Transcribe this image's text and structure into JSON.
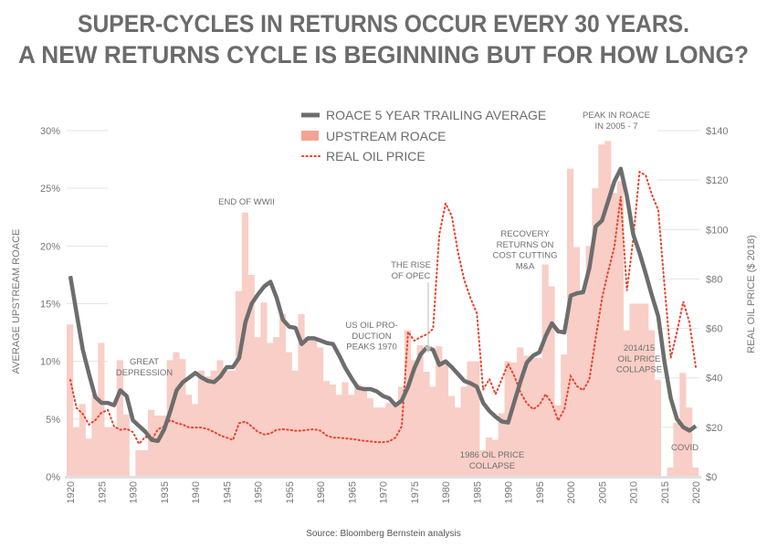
{
  "title_lines": [
    "SUPER-CYCLES IN RETURNS OCCUR EVERY 30 YEARS.",
    "A NEW RETURNS CYCLE IS BEGINNING BUT FOR HOW LONG?"
  ],
  "source": "Source: Bloomberg Bernstein analysis",
  "colors": {
    "bars": "#f8cec6",
    "bars_legend": "#f2a494",
    "roace_line": "#6d6d6d",
    "oil_price": "#e8432e",
    "text": "#6b6b6b",
    "grid": "#e3e3e3"
  },
  "chart_data": {
    "type": "bar+line",
    "title": "SUPER-CYCLES IN RETURNS OCCUR EVERY 30 YEARS. A NEW RETURNS CYCLE IS BEGINNING BUT FOR HOW LONG?",
    "xlabel": "",
    "ylabel": "AVERAGE UPSTREAM ROACE",
    "y2label": "REAL OIL PRICE ($ 2018)",
    "xlim": [
      1920,
      2020
    ],
    "ylim": [
      0,
      30
    ],
    "y2lim": [
      0,
      140
    ],
    "x_ticks": [
      "1920",
      "1925",
      "1930",
      "1935",
      "1940",
      "1945",
      "1950",
      "1955",
      "1960",
      "1965",
      "1970",
      "1975",
      "1980",
      "1985",
      "1990",
      "1995",
      "2000",
      "2005",
      "2010",
      "2015",
      "2020"
    ],
    "y_ticks": [
      "0%",
      "5%",
      "10%",
      "15%",
      "20%",
      "25%",
      "30%"
    ],
    "y2_ticks": [
      "$0",
      "$20",
      "$40",
      "$60",
      "$80",
      "$100",
      "$120",
      "$140"
    ],
    "legend_position": "top-center",
    "grid": "horizontal, partial",
    "start_year": 1920,
    "series": [
      {
        "name": "ROACE 5 YEAR TRAILING AVERAGE",
        "kind": "line",
        "axis": "left",
        "values": [
          17.4,
          14.2,
          11.0,
          8.9,
          6.9,
          6.4,
          6.4,
          6.2,
          7.5,
          7.0,
          4.9,
          4.4,
          3.9,
          3.2,
          3.1,
          4.1,
          5.7,
          7.5,
          8.2,
          8.6,
          9.0,
          8.6,
          8.3,
          8.2,
          8.7,
          9.5,
          9.5,
          10.3,
          13.4,
          15.0,
          15.8,
          16.5,
          16.9,
          15.5,
          13.6,
          13.0,
          12.9,
          11.5,
          12.0,
          12.0,
          11.8,
          11.6,
          11.5,
          10.5,
          9.4,
          8.5,
          7.7,
          7.6,
          7.6,
          7.4,
          7.0,
          6.8,
          6.2,
          6.6,
          7.8,
          9.4,
          10.6,
          11.2,
          11.0,
          9.7,
          10.0,
          9.5,
          8.9,
          8.3,
          8.1,
          7.8,
          6.4,
          5.7,
          5.2,
          4.8,
          4.7,
          6.5,
          8.3,
          9.9,
          10.5,
          10.8,
          12.2,
          13.3,
          12.6,
          12.5,
          15.7,
          15.9,
          16.0,
          18.1,
          21.7,
          22.2,
          23.9,
          25.6,
          26.7,
          24.3,
          21.0,
          19.4,
          17.6,
          15.7,
          13.9,
          9.9,
          6.8,
          5.0,
          4.3,
          4.0,
          4.4
        ]
      },
      {
        "name": "UPSTREAM ROACE",
        "kind": "bar",
        "axis": "left",
        "values": [
          13.2,
          4.3,
          6.3,
          3.3,
          7.1,
          11.6,
          4.3,
          4.3,
          10.1,
          5.4,
          0,
          2.3,
          2.3,
          5.8,
          5.3,
          5.3,
          10.1,
          10.8,
          10.2,
          7.1,
          6.3,
          9.2,
          8.7,
          9.2,
          10.1,
          9.2,
          9.2,
          16.1,
          22.9,
          17.5,
          12.1,
          15.1,
          11.6,
          12.1,
          14.1,
          10.8,
          9.2,
          14.1,
          12.1,
          12.1,
          11.2,
          8.3,
          8.0,
          7.1,
          8.2,
          7.1,
          8.0,
          7.6,
          6.8,
          6.0,
          6.0,
          6.4,
          6.4,
          7.8,
          12.7,
          10.1,
          11.4,
          9.1,
          7.8,
          11.3,
          10.1,
          7.0,
          6.0,
          7.8,
          10.0,
          10.0,
          2.3,
          3.4,
          3.2,
          5.5,
          10.0,
          9.9,
          11.2,
          10.5,
          10.3,
          10.3,
          18.4,
          16.5,
          6.2,
          10.6,
          26.7,
          19.9,
          15.9,
          20.0,
          25.0,
          28.8,
          29.1,
          24.6,
          25.6,
          12.7,
          15.0,
          15.0,
          15.0,
          12.7,
          8.4,
          0,
          0.8,
          4.7,
          9.0,
          6.0,
          0.8
        ]
      },
      {
        "name": "REAL OIL PRICE",
        "kind": "dotted-line",
        "axis": "right",
        "values": [
          39.2,
          27.8,
          25.4,
          21.1,
          22.9,
          26.0,
          27.0,
          20.4,
          19.0,
          19.4,
          18.1,
          13.3,
          16.2,
          14.9,
          19.2,
          20.4,
          22.9,
          21.7,
          21.1,
          19.9,
          19.9,
          19.9,
          19.2,
          18.1,
          16.7,
          15.8,
          14.9,
          21.7,
          22.3,
          20.4,
          18.1,
          17.1,
          17.5,
          19.0,
          19.2,
          19.0,
          18.6,
          18.6,
          19.0,
          19.2,
          18.6,
          16.7,
          15.8,
          15.8,
          15.5,
          15.3,
          14.9,
          14.5,
          14.3,
          14.0,
          14.0,
          14.3,
          15.9,
          20.4,
          58.6,
          55.0,
          56.5,
          57.6,
          59.8,
          98.0,
          110.6,
          105.4,
          90.6,
          79.5,
          72.1,
          66.1,
          35.2,
          39.5,
          33.4,
          39.5,
          45.7,
          40.7,
          34.0,
          29.7,
          27.3,
          29.1,
          33.4,
          29.7,
          22.7,
          27.3,
          40.7,
          36.6,
          35.0,
          39.5,
          56.2,
          72.1,
          83.2,
          93.1,
          113.4,
          75.2,
          96.2,
          123.3,
          121.9,
          114.0,
          107.9,
          77.1,
          48.1,
          58.6,
          70.9,
          62.3,
          44.4
        ]
      }
    ],
    "annotations": [
      {
        "id": "great-depression",
        "lines": [
          "GREAT",
          "DEPRESSION"
        ]
      },
      {
        "id": "end-of-wwii",
        "lines": [
          "END OF WWII"
        ]
      },
      {
        "id": "us-oil-production",
        "lines": [
          "US OIL PRO-",
          "DUCTION",
          "PEAKS 1970"
        ]
      },
      {
        "id": "rise-of-opec",
        "lines": [
          "THE RISE",
          "OF OPEC"
        ]
      },
      {
        "id": "recovery",
        "lines": [
          "RECOVERY",
          "RETURNS ON",
          "COST CUTTING",
          "M&A"
        ]
      },
      {
        "id": "peak-roace",
        "lines": [
          "PEAK IN ROACE",
          "IN 2005 - 7"
        ]
      },
      {
        "id": "oil-collapse-2014",
        "lines": [
          "2014/15",
          "OIL PRICE",
          "COLLAPSE"
        ]
      },
      {
        "id": "oil-collapse-1986",
        "lines": [
          "1986 OIL PRICE",
          "COLLAPSE"
        ]
      },
      {
        "id": "covid",
        "lines": [
          "COVID"
        ]
      }
    ]
  }
}
